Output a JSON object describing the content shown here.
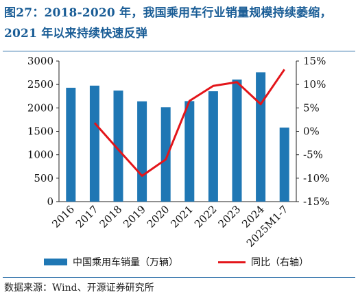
{
  "title": "图27：2018-2020 年，我国乘用车行业销量规模持续萎缩，2021 年以来持续快速反弹",
  "source": "数据来源：Wind、开源证券研究所",
  "colors": {
    "bar": "#1f77b4",
    "line": "#e3151a",
    "title": "#1a5d96"
  },
  "chart_data": {
    "type": "bar+line",
    "categories": [
      "2016",
      "2017",
      "2018",
      "2019",
      "2020",
      "2021",
      "2022",
      "2023",
      "2024",
      "2025M1-7"
    ],
    "series": [
      {
        "name": "中国乘用车销量（万辆）",
        "type": "bar",
        "axis": "left",
        "values": [
          2430,
          2475,
          2370,
          2140,
          2015,
          2145,
          2355,
          2605,
          2760,
          1580
        ]
      },
      {
        "name": "同比（右轴）",
        "type": "line",
        "axis": "right",
        "values": [
          null,
          1.8,
          -3.9,
          -9.5,
          -6.0,
          6.5,
          9.7,
          10.5,
          5.8,
          13.2
        ]
      }
    ],
    "y_left": {
      "min": 0,
      "max": 3000,
      "ticks": [
        "0",
        "500",
        "1000",
        "1500",
        "2000",
        "2500",
        "3000"
      ]
    },
    "y_right": {
      "min": -15,
      "max": 15,
      "ticks": [
        "-15%",
        "-10%",
        "-5%",
        "0%",
        "5%",
        "10%",
        "15%"
      ]
    },
    "grid": false,
    "legend": "bottom"
  }
}
